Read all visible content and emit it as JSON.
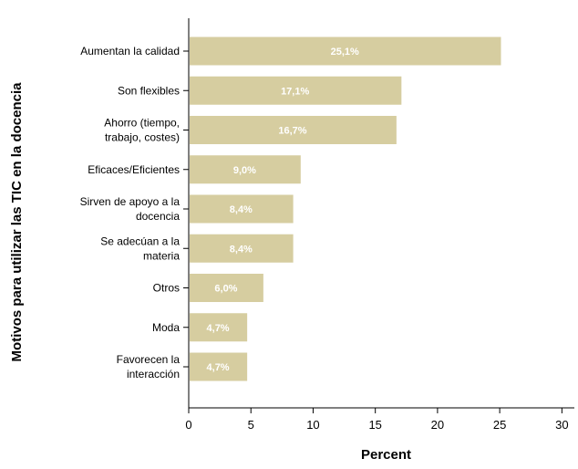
{
  "chart_data": {
    "type": "bar",
    "orientation": "horizontal",
    "categories": [
      [
        "Aumentan la calidad"
      ],
      [
        "Son flexibles"
      ],
      [
        "Ahorro (tiempo,",
        "trabajo, costes)"
      ],
      [
        "Eficaces/Eficientes"
      ],
      [
        "Sirven de apoyo a la",
        "docencia"
      ],
      [
        "Se adecúan a la",
        "materia"
      ],
      [
        "Otros"
      ],
      [
        "Moda"
      ],
      [
        "Favorecen la",
        "interacción"
      ]
    ],
    "values": [
      25.1,
      17.1,
      16.7,
      9.0,
      8.4,
      8.4,
      6.0,
      4.7,
      4.7
    ],
    "data_labels": [
      "25,1%",
      "17,1%",
      "16,7%",
      "9,0%",
      "8,4%",
      "8,4%",
      "6,0%",
      "4,7%",
      "4,7%"
    ],
    "xlabel": "Percent",
    "ylabel": "Motivos para utilizar las TIC en la docencia",
    "xlim": [
      0,
      31
    ],
    "xticks": [
      0,
      5,
      10,
      15,
      20,
      25,
      30
    ],
    "grid": false,
    "bar_color": "#d6cda0",
    "axis_color": "#000000"
  }
}
